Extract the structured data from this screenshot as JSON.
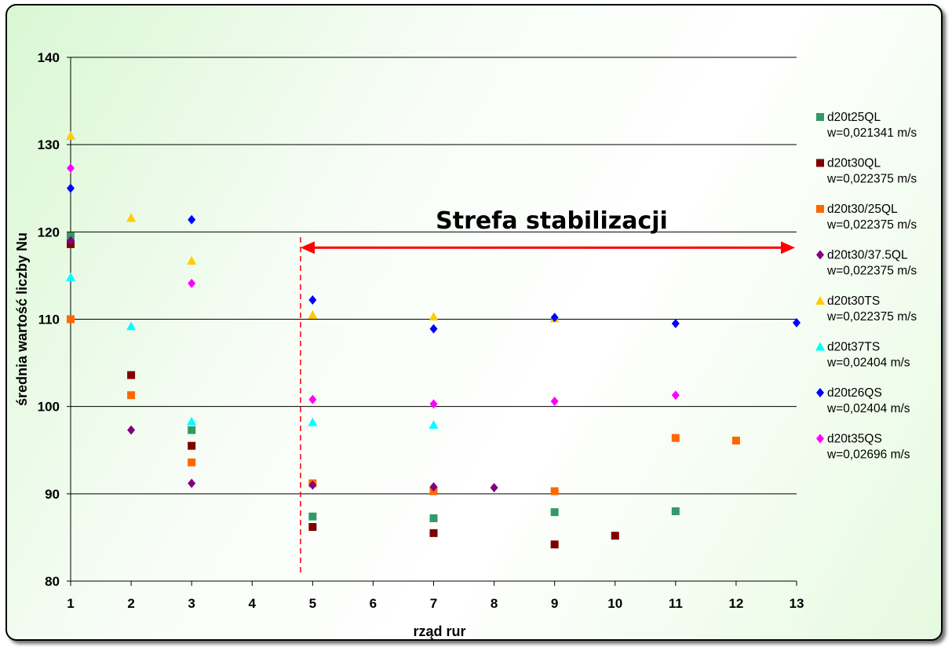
{
  "chart_data": {
    "type": "scatter",
    "xlabel": "rząd rur",
    "ylabel": "średnia wartość liczby Nu",
    "ylim": [
      80,
      140
    ],
    "yticks": [
      80,
      90,
      100,
      110,
      120,
      130,
      140
    ],
    "xticks": [
      1,
      2,
      3,
      4,
      5,
      6,
      7,
      8,
      9,
      10,
      11,
      12,
      13
    ],
    "grid": "horizontal",
    "legend_position": "right",
    "annotation": {
      "text": "Strefa stabilizacji",
      "arrow_from_x": 4.8,
      "arrow_to_x": 13,
      "arrow_y": 118.2,
      "dashed_line_x": 4.8,
      "arrow_color": "#ff0000"
    },
    "series": [
      {
        "name": "d20t25QL",
        "subtitle": "w=0,021341 m/s",
        "marker": "square",
        "color": "#339966",
        "points": [
          [
            1,
            119.5
          ],
          [
            3,
            97.3
          ],
          [
            5,
            87.4
          ],
          [
            7,
            87.2
          ],
          [
            9,
            87.9
          ],
          [
            11,
            88.0
          ]
        ]
      },
      {
        "name": "d20t30QL",
        "subtitle": "w=0,022375 m/s",
        "marker": "square",
        "color": "#800000",
        "points": [
          [
            1,
            118.6
          ],
          [
            2,
            103.6
          ],
          [
            3,
            95.5
          ],
          [
            5,
            86.2
          ],
          [
            7,
            85.5
          ],
          [
            9,
            84.2
          ],
          [
            10,
            85.2
          ]
        ]
      },
      {
        "name": "d20t30/25QL",
        "subtitle": "w=0,022375 m/s",
        "marker": "square",
        "color": "#ff6600",
        "points": [
          [
            1,
            110.0
          ],
          [
            2,
            101.3
          ],
          [
            3,
            93.6
          ],
          [
            5,
            91.2
          ],
          [
            7,
            90.3
          ],
          [
            9,
            90.3
          ],
          [
            11,
            96.4
          ],
          [
            12,
            96.1
          ]
        ]
      },
      {
        "name": "d20t30/37.5QL",
        "subtitle": "w=0,022375 m/s",
        "marker": "diamond",
        "color": "#800080",
        "points": [
          [
            1,
            119.0
          ],
          [
            2,
            97.3
          ],
          [
            3,
            91.2
          ],
          [
            5,
            91.0
          ],
          [
            7,
            90.8
          ],
          [
            8,
            90.7
          ]
        ]
      },
      {
        "name": "d20t30TS",
        "subtitle": "w=0,022375 m/s",
        "marker": "triangle",
        "color": "#ffcc00",
        "points": [
          [
            1,
            131.0
          ],
          [
            2,
            121.6
          ],
          [
            3,
            116.7
          ],
          [
            5,
            110.5
          ],
          [
            7,
            110.3
          ],
          [
            9,
            110.1
          ]
        ]
      },
      {
        "name": "d20t37TS",
        "subtitle": "w=0,02404 m/s",
        "marker": "triangle",
        "color": "#00ffff",
        "points": [
          [
            1,
            114.8
          ],
          [
            2,
            109.2
          ],
          [
            3,
            98.3
          ],
          [
            5,
            98.2
          ],
          [
            7,
            97.9
          ]
        ]
      },
      {
        "name": "d20t26QS",
        "subtitle": "w=0,02404 m/s",
        "marker": "diamond",
        "color": "#0000ff",
        "points": [
          [
            1,
            125.0
          ],
          [
            3,
            121.4
          ],
          [
            5,
            112.2
          ],
          [
            7,
            108.9
          ],
          [
            9,
            110.2
          ],
          [
            11,
            109.5
          ],
          [
            13,
            109.6
          ]
        ]
      },
      {
        "name": "d20t35QS",
        "subtitle": "w=0,02696 m/s",
        "marker": "diamond",
        "color": "#ff00ff",
        "points": [
          [
            1,
            127.3
          ],
          [
            3,
            114.1
          ],
          [
            5,
            100.8
          ],
          [
            7,
            100.3
          ],
          [
            9,
            100.6
          ],
          [
            11,
            101.3
          ]
        ]
      }
    ]
  }
}
